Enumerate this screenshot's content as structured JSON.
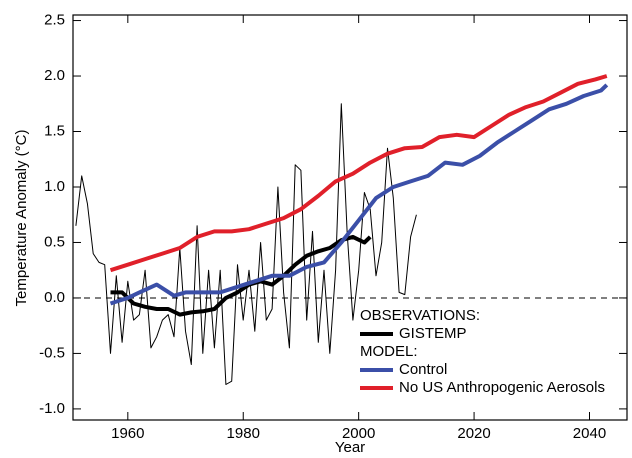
{
  "chart_data": {
    "type": "line",
    "x_label": "Year",
    "y_label": "Temperature Anomaly (°C)",
    "xlim": [
      1950.5,
      2046.5
    ],
    "xticks": [
      1960,
      1980,
      2000,
      2020,
      2040
    ],
    "ylim": [
      -1.1,
      2.55
    ],
    "yticks": [
      {
        "value": -1.0,
        "label": "-1.0"
      },
      -0.5,
      {
        "value": 0,
        "label": "0.0"
      },
      0.5,
      {
        "value": 1.0,
        "label": "1.0"
      },
      1.5,
      {
        "value": 2.0,
        "label": "2.0"
      },
      2.5
    ],
    "reference_line": {
      "value": 0,
      "style": "dashed"
    },
    "legend_headings": [
      "OBSERVATIONS:",
      "MODEL:"
    ],
    "annual": {
      "color": "#000000",
      "x": [
        1951,
        1952,
        1953,
        1954,
        1955,
        1956,
        1957,
        1958,
        1959,
        1960,
        1961,
        1962,
        1963,
        1964,
        1965,
        1966,
        1967,
        1968,
        1969,
        1970,
        1971,
        1972,
        1973,
        1974,
        1975,
        1976,
        1977,
        1978,
        1979,
        1980,
        1981,
        1982,
        1983,
        1984,
        1985,
        1986,
        1987,
        1988,
        1989,
        1990,
        1991,
        1992,
        1993,
        1994,
        1995,
        1996,
        1997,
        1998,
        1999,
        2000,
        2001,
        2002,
        2003,
        2004,
        2005,
        2006,
        2007,
        2008,
        2009,
        2010
      ],
      "values": [
        0.65,
        1.1,
        0.85,
        0.4,
        0.32,
        0.3,
        -0.5,
        0.2,
        -0.4,
        0.15,
        -0.2,
        -0.15,
        0.25,
        -0.45,
        -0.35,
        -0.2,
        -0.15,
        -0.35,
        0.45,
        -0.3,
        -0.6,
        0.65,
        -0.5,
        0.25,
        -0.45,
        0.25,
        -0.78,
        -0.75,
        0.3,
        -0.2,
        0.25,
        -0.3,
        0.5,
        -0.2,
        -0.1,
        1.0,
        0.05,
        -0.45,
        1.2,
        1.15,
        -0.2,
        0.6,
        -0.4,
        0.25,
        -0.5,
        0.25,
        1.75,
        0.6,
        -0.2,
        0.25,
        0.95,
        0.8,
        0.2,
        0.5,
        1.35,
        0.9,
        0.05,
        0.03,
        0.55,
        0.75
      ]
    },
    "series": [
      {
        "name": "GISTEMP",
        "group": 0,
        "color": "#000000",
        "x": [
          1957,
          1959,
          1961,
          1963,
          1965,
          1967,
          1969,
          1971,
          1973,
          1975,
          1977,
          1979,
          1981,
          1983,
          1985,
          1987,
          1989,
          1991,
          1993,
          1995,
          1997,
          1999,
          2001,
          2002
        ],
        "values": [
          0.05,
          0.05,
          -0.05,
          -0.08,
          -0.1,
          -0.1,
          -0.15,
          -0.13,
          -0.12,
          -0.1,
          0.0,
          0.05,
          0.12,
          0.15,
          0.12,
          0.2,
          0.3,
          0.38,
          0.42,
          0.45,
          0.52,
          0.55,
          0.5,
          0.55
        ]
      },
      {
        "name": "Control",
        "group": 1,
        "color": "#3b4fa8",
        "x": [
          1957,
          1960,
          1962,
          1965,
          1968,
          1970,
          1973,
          1976,
          1979,
          1982,
          1985,
          1988,
          1991,
          1994,
          1997,
          2000,
          2003,
          2006,
          2009,
          2012,
          2015,
          2018,
          2021,
          2024,
          2027,
          2030,
          2033,
          2036,
          2039,
          2042,
          2043
        ],
        "values": [
          -0.05,
          0.0,
          0.05,
          0.12,
          0.02,
          0.05,
          0.05,
          0.05,
          0.1,
          0.15,
          0.2,
          0.2,
          0.28,
          0.32,
          0.5,
          0.7,
          0.9,
          1.0,
          1.05,
          1.1,
          1.22,
          1.2,
          1.28,
          1.4,
          1.5,
          1.6,
          1.7,
          1.75,
          1.82,
          1.87,
          1.92
        ]
      },
      {
        "name": "No US Anthropogenic Aerosols",
        "group": 1,
        "color": "#e0202a",
        "x": [
          1957,
          1960,
          1963,
          1966,
          1969,
          1972,
          1975,
          1978,
          1981,
          1984,
          1987,
          1990,
          1993,
          1996,
          1999,
          2002,
          2005,
          2008,
          2011,
          2014,
          2017,
          2020,
          2023,
          2026,
          2029,
          2032,
          2035,
          2038,
          2041,
          2043
        ],
        "values": [
          0.25,
          0.3,
          0.35,
          0.4,
          0.45,
          0.55,
          0.6,
          0.6,
          0.62,
          0.67,
          0.72,
          0.8,
          0.92,
          1.05,
          1.12,
          1.22,
          1.3,
          1.35,
          1.36,
          1.45,
          1.47,
          1.45,
          1.55,
          1.65,
          1.72,
          1.77,
          1.85,
          1.93,
          1.97,
          2.0
        ]
      }
    ]
  }
}
